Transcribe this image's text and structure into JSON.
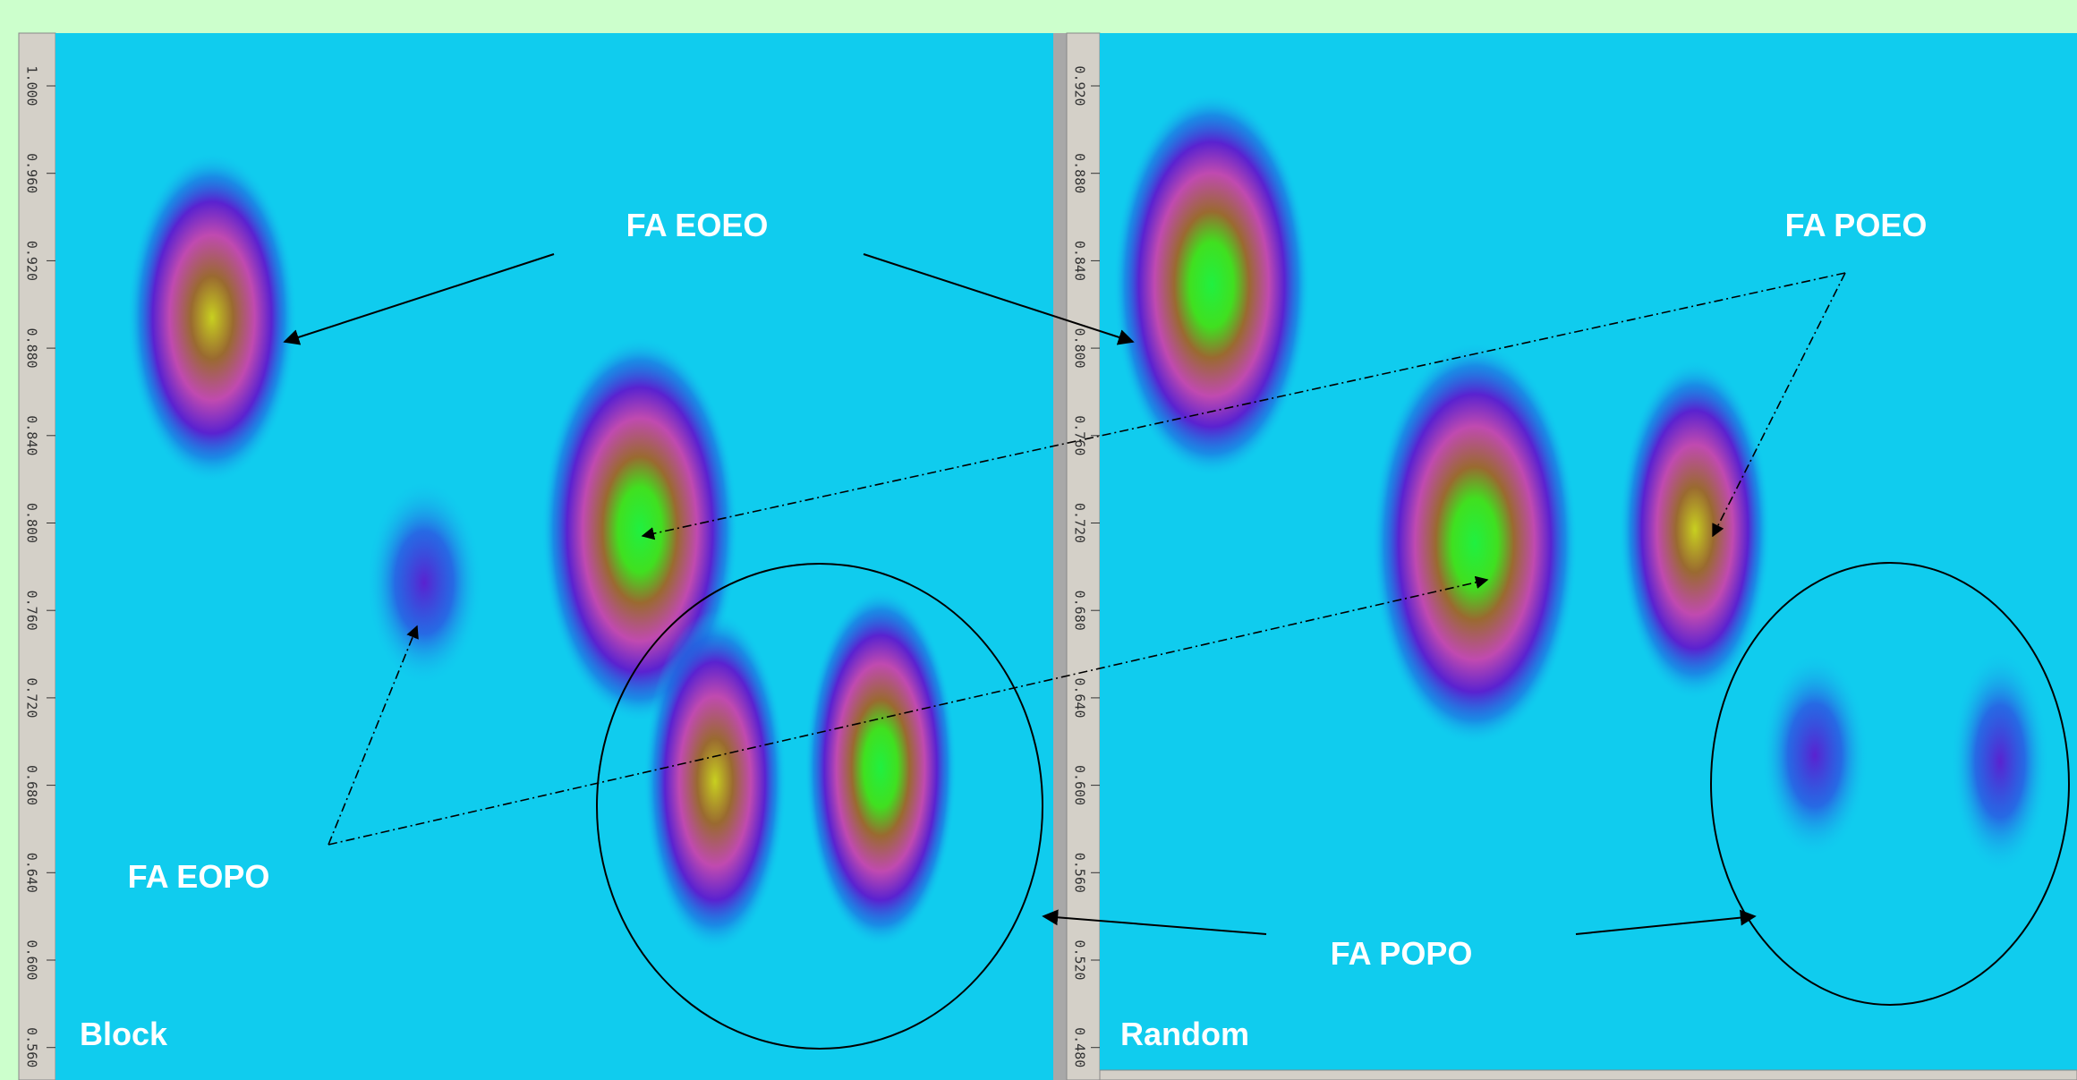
{
  "panels": [
    {
      "label": "Block",
      "ticks": [
        "1.000",
        "0.960",
        "0.920",
        "0.880",
        "0.840",
        "0.800",
        "0.760",
        "0.720",
        "0.680",
        "0.640",
        "0.600",
        "0.560"
      ]
    },
    {
      "label": "Random",
      "ticks": [
        "0.920",
        "0.880",
        "0.840",
        "0.800",
        "0.760",
        "0.720",
        "0.680",
        "0.640",
        "0.600",
        "0.560",
        "0.520",
        "0.480"
      ]
    }
  ],
  "annotations": {
    "eoeo": "FA EOEO",
    "poeo": "FA POEO",
    "eopo": "FA EOPO",
    "popo": "FA POPO"
  }
}
